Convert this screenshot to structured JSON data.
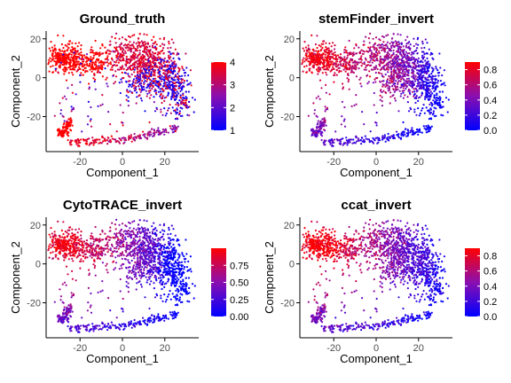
{
  "figure": {
    "x_range": [
      -36,
      36
    ],
    "y_range": [
      -38,
      24
    ]
  },
  "chart_data": [
    {
      "type": "scatter",
      "title": "Ground_truth",
      "xlabel": "Component_1",
      "ylabel": "Component_2",
      "x_ticks": [
        -20,
        0,
        20
      ],
      "y_ticks": [
        -20,
        0,
        20
      ],
      "color_scale": {
        "low": "#0000ff",
        "high": "#ff0000",
        "range": [
          1,
          4
        ],
        "ticks": [
          1,
          2,
          3,
          4
        ],
        "tick_labels": [
          "1",
          "2",
          "3",
          "4"
        ]
      },
      "coloring": "ground_truth",
      "seed": 11
    },
    {
      "type": "scatter",
      "title": "stemFinder_invert",
      "xlabel": "Component_1",
      "ylabel": "Component_2",
      "x_ticks": [
        -20,
        0,
        20
      ],
      "y_ticks": [
        -20,
        0,
        20
      ],
      "color_scale": {
        "low": "#0000ff",
        "high": "#ff0000",
        "range": [
          0,
          0.9
        ],
        "ticks": [
          0,
          0.2,
          0.4,
          0.6,
          0.8
        ],
        "tick_labels": [
          "0.0",
          "0.2",
          "0.4",
          "0.6",
          "0.8"
        ]
      },
      "coloring": "stemfinder",
      "seed": 23
    },
    {
      "type": "scatter",
      "title": "CytoTRACE_invert",
      "xlabel": "Component_1",
      "ylabel": "Component_2",
      "x_ticks": [
        -20,
        0,
        20
      ],
      "y_ticks": [
        -20,
        0,
        20
      ],
      "color_scale": {
        "low": "#0000ff",
        "high": "#ff0000",
        "range": [
          0,
          1
        ],
        "ticks": [
          0,
          0.25,
          0.5,
          0.75
        ],
        "tick_labels": [
          "0.00",
          "0.25",
          "0.50",
          "0.75"
        ]
      },
      "coloring": "cytotrace",
      "seed": 37
    },
    {
      "type": "scatter",
      "title": "ccat_invert",
      "xlabel": "Component_1",
      "ylabel": "Component_2",
      "x_ticks": [
        -20,
        0,
        20
      ],
      "y_ticks": [
        -20,
        0,
        20
      ],
      "color_scale": {
        "low": "#0000ff",
        "high": "#ff0000",
        "range": [
          0,
          0.9
        ],
        "ticks": [
          0,
          0.2,
          0.4,
          0.6,
          0.8
        ],
        "tick_labels": [
          "0.0",
          "0.2",
          "0.4",
          "0.6",
          "0.8"
        ]
      },
      "coloring": "ccat",
      "seed": 51
    }
  ]
}
